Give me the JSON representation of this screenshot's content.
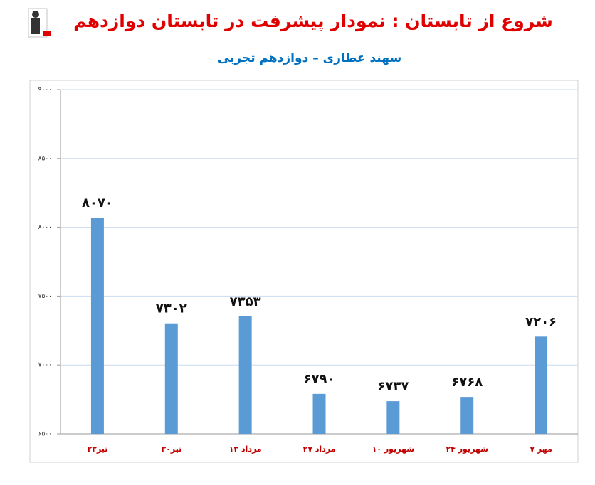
{
  "chart_data": {
    "type": "bar",
    "title": "شروع از تابستان : نمودار پیشرفت در تابستان دوازدهم",
    "subtitle": "سهند عطاری – دوازدهم تجربی",
    "categories": [
      "۲۳تیر",
      "۳۰تیر",
      "۱۳ مرداد",
      "۲۷ مرداد",
      "۱۰ شهریور",
      "۲۴ شهریور",
      "۷ مهر"
    ],
    "values": [
      8070,
      7302,
      7353,
      6790,
      6737,
      6768,
      7206
    ],
    "value_labels": [
      "۸۰۷۰",
      "۷۳۰۲",
      "۷۳۵۳",
      "۶۷۹۰",
      "۶۷۳۷",
      "۶۷۶۸",
      "۷۲۰۶"
    ],
    "color": "#5b9bd5",
    "ylim": [
      6500,
      9000
    ],
    "yticks": [
      {
        "value": 6500,
        "label": "۶۵۰۰"
      },
      {
        "value": 7000,
        "label": "۷۰۰۰"
      },
      {
        "value": 7500,
        "label": "۷۵۰۰"
      },
      {
        "value": 8000,
        "label": "۸۰۰۰"
      },
      {
        "value": 8500,
        "label": "۸۵۰۰"
      },
      {
        "value": 9000,
        "label": "۹۰۰۰"
      }
    ],
    "grid": true
  }
}
